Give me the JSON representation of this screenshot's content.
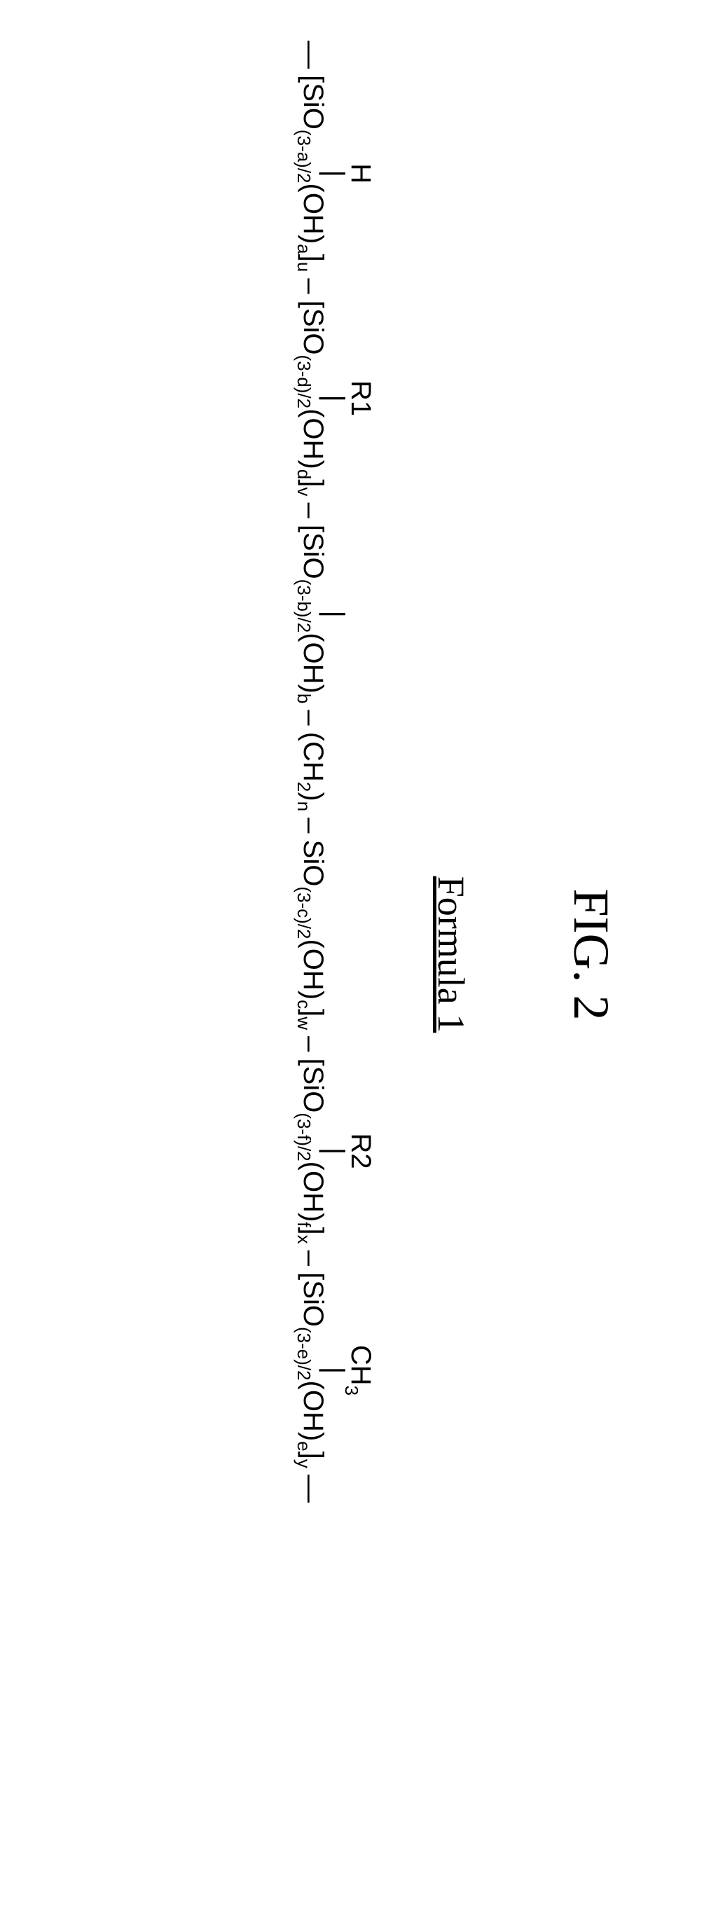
{
  "figure": {
    "title": "FIG. 2",
    "formula_label": "Formula 1",
    "font_family_title": "Times New Roman",
    "font_family_formula": "Arial",
    "title_fontsize_pt": 54,
    "label_fontsize_pt": 40,
    "formula_fontsize_pt": 30,
    "text_color": "#000000",
    "background_color": "#ffffff"
  },
  "formula": {
    "units": [
      {
        "top": "H",
        "main_pre": "[SiO",
        "sub1": "(3-a)/2",
        "mid": "(OH)",
        "sub2": "a",
        "post": "]",
        "outer_sub": "u"
      },
      {
        "top": "R1",
        "main_pre": "[SiO",
        "sub1": "(3-d)/2",
        "mid": "(OH)",
        "sub2": "d",
        "post": "]",
        "outer_sub": "v"
      },
      {
        "top": "",
        "main_pre": "[SiO",
        "sub1": "(3-b)/2",
        "mid": "(OH)",
        "sub2": "b",
        "post": "",
        "outer_sub": ""
      },
      {
        "top": "",
        "main_pre": "(CH",
        "sub1": "2",
        "mid": ")",
        "sub2": "n",
        "post": "",
        "outer_sub": ""
      },
      {
        "top": "",
        "main_pre": "SiO",
        "sub1": "(3-c)/2",
        "mid": "(OH)",
        "sub2": "c",
        "post": "]",
        "outer_sub": "w"
      },
      {
        "top": "R2",
        "main_pre": "[SiO",
        "sub1": "(3-f)/2",
        "mid": "(OH)",
        "sub2": "f",
        "post": "]",
        "outer_sub": "x"
      },
      {
        "top": "CH",
        "top_sub": "3",
        "main_pre": "[SiO",
        "sub1": "(3-e)/2",
        "mid": "(OH)",
        "sub2": "e",
        "post": "]",
        "outer_sub": "y"
      }
    ],
    "leading_dash": "—",
    "inter_dash": "–",
    "trailing_dash": "—",
    "tick_char": "|"
  }
}
